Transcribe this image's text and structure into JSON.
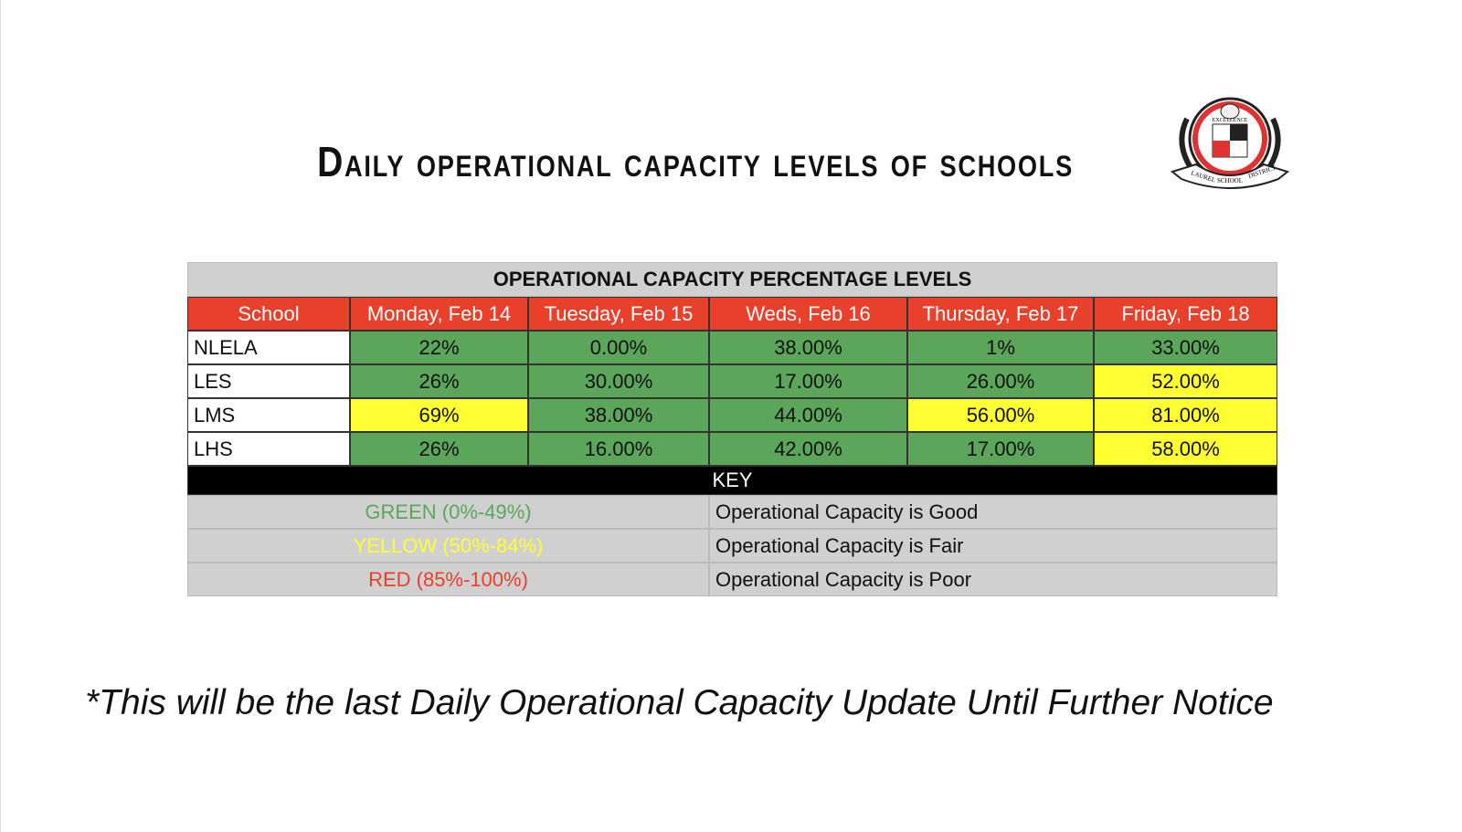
{
  "title": "Daily operational capacity levels of schools",
  "logo": {
    "top": "EXCELLENCE",
    "left": "LAUREL",
    "middle": "SCHOOL",
    "right": "DISTRICT"
  },
  "table": {
    "title": "OPERATIONAL CAPACITY PERCENTAGE LEVELS",
    "columns": [
      "School",
      "Monday, Feb 14",
      "Tuesday, Feb 15",
      "Weds, Feb 16",
      "Thursday, Feb 17",
      "Friday, Feb 18"
    ],
    "rows": [
      [
        "NLELA",
        "22%",
        "0.00%",
        "38.00%",
        "1%",
        "33.00%"
      ],
      [
        "LES",
        "26%",
        "30.00%",
        "17.00%",
        "26.00%",
        "52.00%"
      ],
      [
        "LMS",
        "69%",
        "38.00%",
        "44.00%",
        "56.00%",
        "81.00%"
      ],
      [
        "LHS",
        "26%",
        "16.00%",
        "42.00%",
        "17.00%",
        "58.00%"
      ]
    ],
    "cell_colors": [
      [
        "#5ba65b",
        "#5ba65b",
        "#5ba65b",
        "#5ba65b",
        "#5ba65b"
      ],
      [
        "#5ba65b",
        "#5ba65b",
        "#5ba65b",
        "#5ba65b",
        "#ffff33"
      ],
      [
        "#ffff33",
        "#5ba65b",
        "#5ba65b",
        "#ffff33",
        "#ffff33"
      ],
      [
        "#5ba65b",
        "#5ba65b",
        "#5ba65b",
        "#5ba65b",
        "#ffff33"
      ]
    ],
    "key_title": "KEY",
    "key": [
      {
        "range": "GREEN (0%-49%)",
        "meaning": "Operational Capacity is Good",
        "color": "#5ba65b"
      },
      {
        "range": "YELLOW (50%-84%)",
        "meaning": "Operational Capacity is Fair",
        "color": "#ffff33"
      },
      {
        "range": "RED (85%-100%)",
        "meaning": "Operational Capacity is Poor",
        "color": "#e8402a"
      }
    ]
  },
  "footnote": "*This will be the last Daily Operational Capacity Update Until Further Notice"
}
